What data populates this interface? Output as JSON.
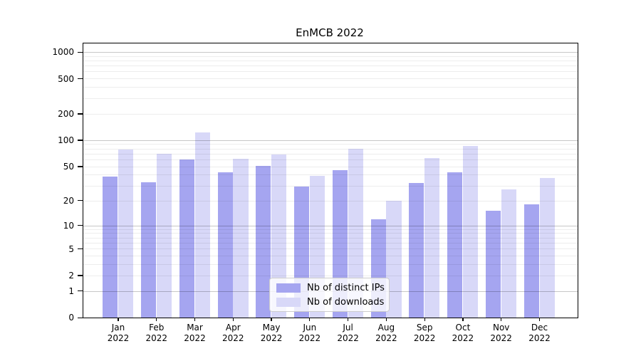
{
  "title": "EnMCB 2022",
  "chart_data": {
    "type": "bar",
    "title": "EnMCB 2022",
    "yscale": "log1p",
    "ylim": [
      0,
      1270
    ],
    "grid": true,
    "legend_position": "lower center",
    "y_tick_labels": [
      "0",
      "1",
      "2",
      "5",
      "10",
      "20",
      "50",
      "100",
      "200",
      "500",
      "1000"
    ],
    "y_ticks": [
      0,
      1,
      2,
      5,
      10,
      20,
      50,
      100,
      200,
      500,
      1000
    ],
    "categories": [
      "Jan 2022",
      "Feb 2022",
      "Mar 2022",
      "Apr 2022",
      "May 2022",
      "Jun 2022",
      "Jul 2022",
      "Aug 2022",
      "Sep 2022",
      "Oct 2022",
      "Nov 2022",
      "Dec 2022"
    ],
    "x_tick_months": [
      "Jan",
      "Feb",
      "Mar",
      "Apr",
      "May",
      "Jun",
      "Jul",
      "Aug",
      "Sep",
      "Oct",
      "Nov",
      "Dec"
    ],
    "x_tick_year": "2022",
    "series": [
      {
        "name": "Nb of distinct IPs",
        "color": "#a5a5f0",
        "values": [
          38,
          33,
          60,
          43,
          51,
          29,
          45,
          12,
          32,
          43,
          15,
          18
        ]
      },
      {
        "name": "Nb of downloads",
        "color": "#d8d8f8",
        "values": [
          78,
          70,
          123,
          61,
          68,
          39,
          79,
          20,
          62,
          86,
          27,
          37
        ]
      }
    ]
  }
}
